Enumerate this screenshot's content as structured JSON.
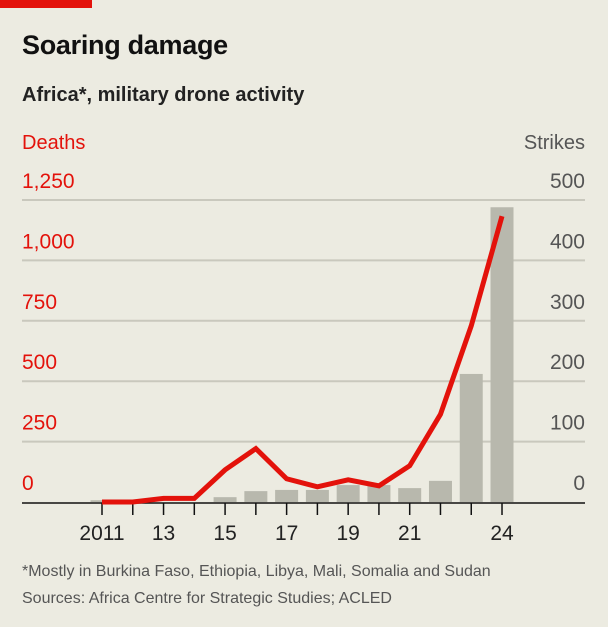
{
  "header": {
    "title": "Soaring damage",
    "subtitle": "Africa*, military drone activity"
  },
  "footer": {
    "note": "*Mostly in Burkina Faso, Ethiopia, Libya, Mali, Somalia and Sudan",
    "sources": "Sources: Africa Centre for Strategic Studies; ACLED"
  },
  "colors": {
    "deaths": "#e3120b",
    "strikes": "#b8b8ad",
    "background": "#ecebe1"
  },
  "chart_data": {
    "type": "bar+line",
    "title": "Soaring damage",
    "subtitle": "Africa*, military drone activity",
    "x": [
      2011,
      2012,
      2013,
      2014,
      2015,
      2016,
      2017,
      2018,
      2019,
      2020,
      2021,
      2022,
      2023,
      2024
    ],
    "x_tick_labels": [
      "2011",
      "",
      "13",
      "",
      "15",
      "",
      "17",
      "",
      "19",
      "",
      "21",
      "",
      "",
      "24"
    ],
    "series": [
      {
        "name": "Strikes",
        "type": "bar",
        "axis": "right",
        "values": [
          3,
          0,
          0,
          0,
          8,
          18,
          20,
          20,
          28,
          28,
          23,
          35,
          212,
          488
        ]
      },
      {
        "name": "Deaths",
        "type": "line",
        "axis": "left",
        "values": [
          0,
          0,
          15,
          15,
          133,
          221,
          96,
          63,
          92,
          67,
          150,
          363,
          729,
          1183
        ]
      }
    ],
    "left_axis": {
      "label": "Deaths",
      "ticks": [
        "0",
        "250",
        "500",
        "750",
        "1,000",
        "1,250"
      ],
      "tick_values": [
        0,
        250,
        500,
        750,
        1000,
        1250
      ],
      "range": [
        0,
        1250
      ]
    },
    "right_axis": {
      "label": "Strikes",
      "ticks": [
        "0",
        "100",
        "200",
        "300",
        "400",
        "500"
      ],
      "tick_values": [
        0,
        100,
        200,
        300,
        400,
        500
      ],
      "range": [
        0,
        500
      ]
    },
    "grid": true
  }
}
